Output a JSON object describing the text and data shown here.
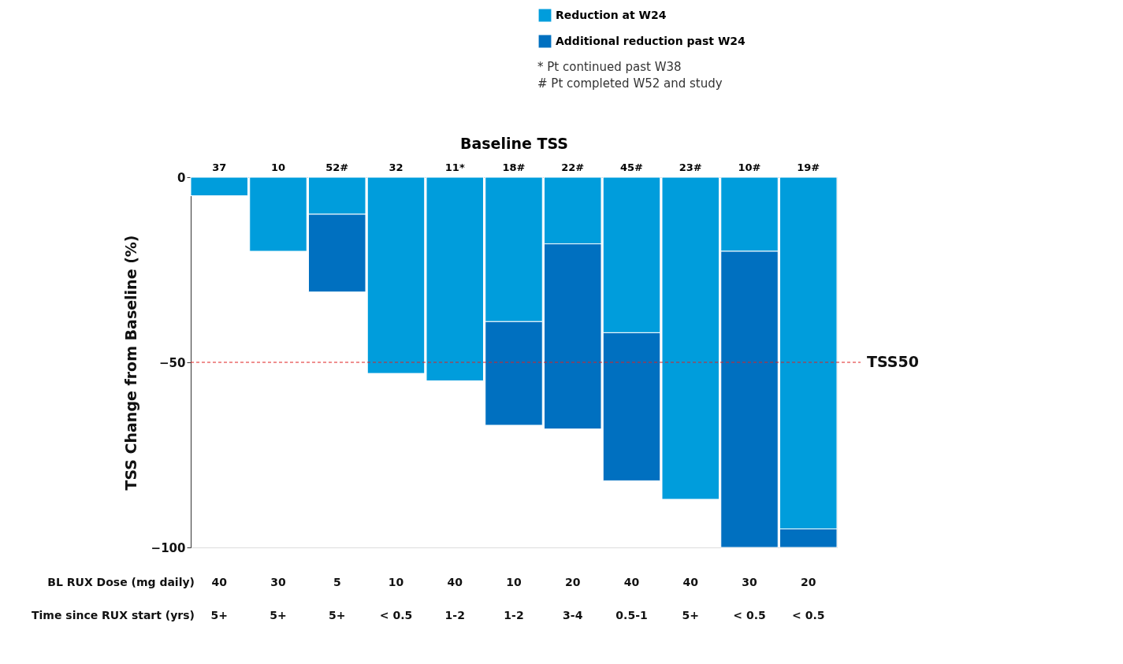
{
  "chart_data": {
    "type": "bar",
    "stacked": true,
    "xlabel": "Baseline TSS",
    "ylabel": "TSS Change from Baseline (%)",
    "categories": [
      "37",
      "10",
      "52#",
      "32",
      "11*",
      "18#",
      "22#",
      "45#",
      "23#",
      "10#",
      "19#"
    ],
    "series": [
      {
        "name": "Reduction at W24",
        "color": "#009ddc",
        "values": [
          -5,
          -20,
          -10,
          -53,
          -55,
          -39,
          -18,
          -42,
          -87,
          -20,
          -95
        ]
      },
      {
        "name": "Additional reduction past W24",
        "color": "#0070c0",
        "values": [
          null,
          null,
          -21,
          null,
          null,
          -28,
          -50,
          -40,
          null,
          -80,
          -5
        ]
      }
    ],
    "ylim": [
      -100,
      0
    ],
    "yticks": [
      0,
      -50,
      -100
    ],
    "grid": false,
    "legend": "top right",
    "ref_lines": [
      {
        "axis": "y",
        "value": -50,
        "label": "TSS50",
        "color": "#e02020",
        "line_style": "dashed"
      }
    ],
    "annotations": [
      "* Pt continued past W38",
      "# Pt completed W52 and study",
      "BL RUX Dose (mg daily)",
      "40",
      "30",
      "5",
      "10",
      "40",
      "10",
      "20",
      "40",
      "40",
      "30",
      "20",
      "Time since RUX start (yrs)",
      "5+",
      "5+",
      "5+",
      "< 0.5",
      "1-2",
      "1-2",
      "3-4",
      "0.5-1",
      "5+",
      "< 0.5",
      "< 0.5"
    ]
  }
}
